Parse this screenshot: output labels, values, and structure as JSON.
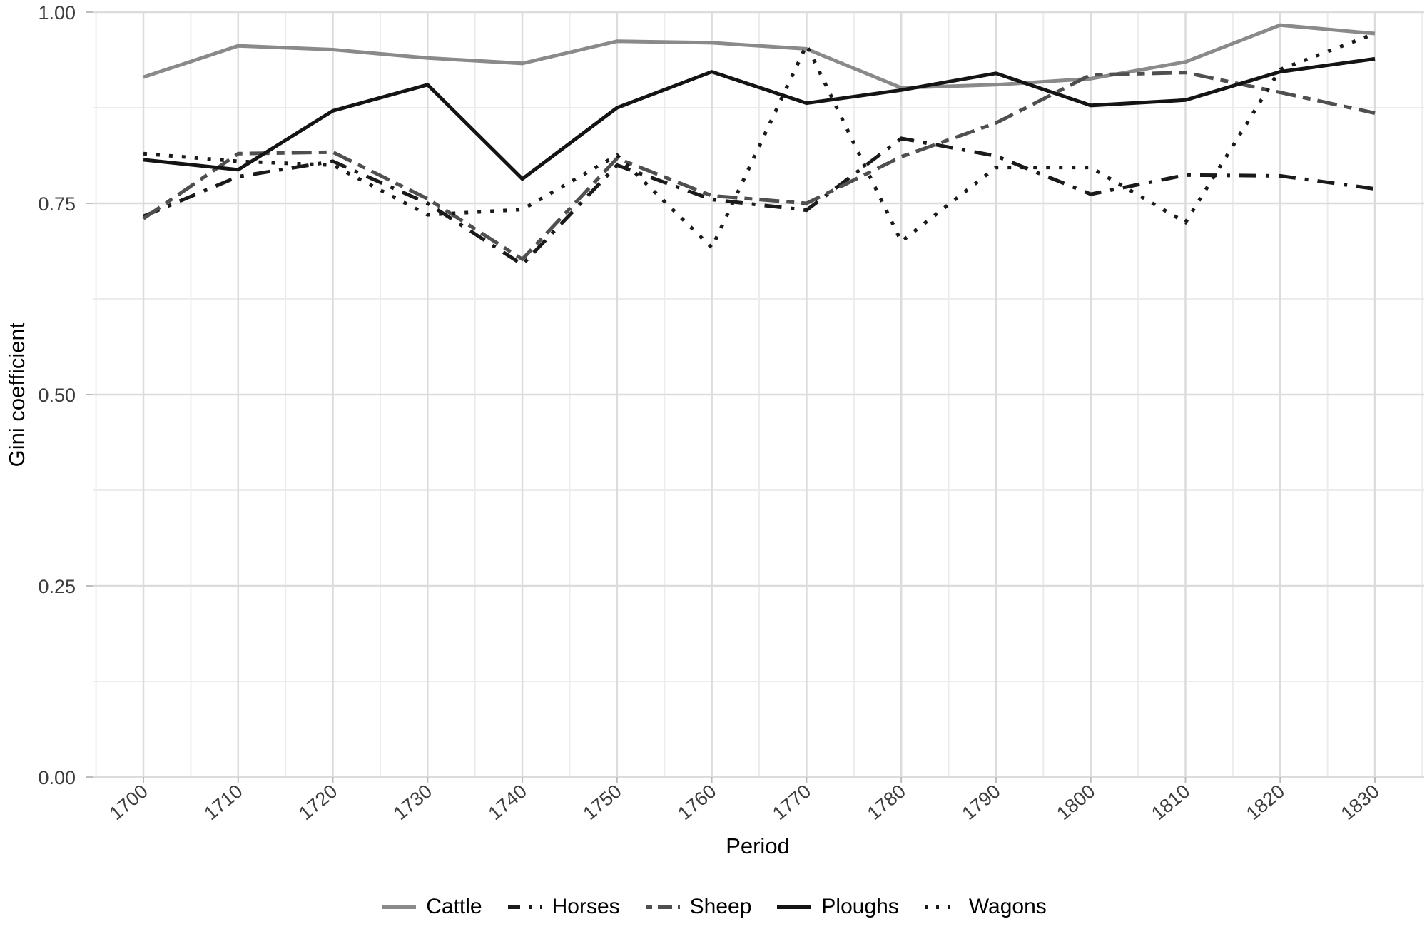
{
  "figure": {
    "y_axis_title": "Gini coefficient",
    "x_axis_title": "Period"
  },
  "chart_data": {
    "type": "line",
    "title": "",
    "xlabel": "Period",
    "ylabel": "Gini coefficient",
    "ylim": [
      0.0,
      1.0
    ],
    "grid": "major+minor, light gray on white",
    "legend_position": "bottom",
    "x": [
      1700,
      1710,
      1720,
      1730,
      1740,
      1750,
      1760,
      1770,
      1780,
      1790,
      1800,
      1810,
      1820,
      1830
    ],
    "x_tick_labels": [
      "1700",
      "1710",
      "1720",
      "1730",
      "1740",
      "1750",
      "1760",
      "1770",
      "1780",
      "1790",
      "1800",
      "1810",
      "1820",
      "1830"
    ],
    "y_ticks": [
      0.0,
      0.25,
      0.5,
      0.75,
      1.0
    ],
    "y_tick_labels": [
      "0.00",
      "0.25",
      "0.50",
      "0.75",
      "1.00"
    ],
    "series": [
      {
        "name": "Cattle",
        "color": "#8a8a8a",
        "linetype": "solid",
        "values": [
          0.915,
          0.956,
          0.951,
          0.94,
          0.933,
          0.962,
          0.96,
          0.952,
          0.901,
          0.905,
          0.913,
          0.935,
          0.983,
          0.972
        ]
      },
      {
        "name": "Horses",
        "color": "#1a1a1a",
        "linetype": "dotdash",
        "values": [
          0.733,
          0.785,
          0.805,
          0.75,
          0.67,
          0.8,
          0.755,
          0.741,
          0.835,
          0.812,
          0.762,
          0.787,
          0.786,
          0.769
        ]
      },
      {
        "name": "Sheep",
        "color": "#4f4f4f",
        "linetype": "twodash",
        "values": [
          0.73,
          0.815,
          0.817,
          0.756,
          0.677,
          0.809,
          0.76,
          0.75,
          0.811,
          0.855,
          0.918,
          0.921,
          0.895,
          0.868
        ]
      },
      {
        "name": "Ploughs",
        "color": "#141414",
        "linetype": "solid",
        "values": [
          0.807,
          0.794,
          0.871,
          0.905,
          0.782,
          0.875,
          0.922,
          0.881,
          0.898,
          0.92,
          0.878,
          0.885,
          0.922,
          0.939
        ]
      },
      {
        "name": "Wagons",
        "color": "#1a1a1a",
        "linetype": "dotted",
        "values": [
          0.815,
          0.805,
          0.8,
          0.735,
          0.742,
          0.813,
          0.692,
          0.957,
          0.7,
          0.797,
          0.797,
          0.725,
          0.925,
          0.972
        ]
      }
    ]
  }
}
